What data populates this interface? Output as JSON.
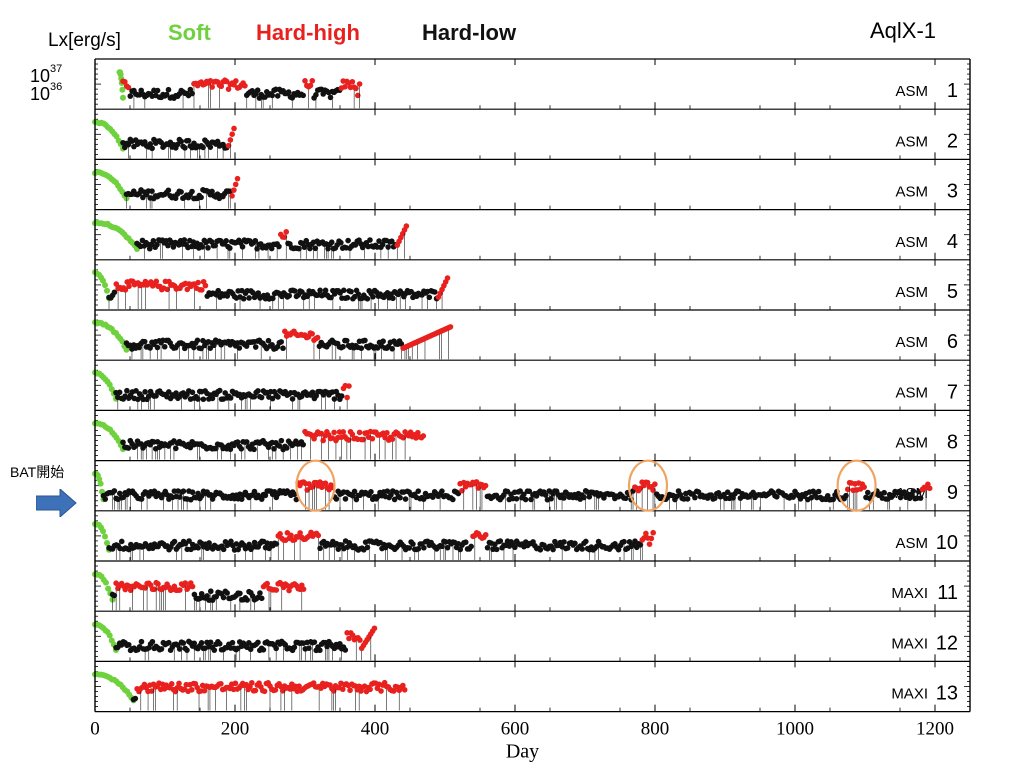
{
  "title": "AqlX-1",
  "ylabel": "Lx[erg/s]",
  "xlabel": "Day",
  "legend": [
    {
      "label": "Soft",
      "color": "#6fd13e"
    },
    {
      "label": "Hard-high",
      "color": "#e8211f"
    },
    {
      "label": "Hard-low",
      "color": "#111111"
    }
  ],
  "yticks": [
    {
      "base": "10",
      "exp": "37"
    },
    {
      "base": "10",
      "exp": "36"
    }
  ],
  "annotation": {
    "text": "BAT開始",
    "arrow_color": "#3d72b8",
    "panel": 9
  },
  "highlight": {
    "panel": "9",
    "x_days": [
      315,
      790,
      1088
    ],
    "color": "#f0a464"
  },
  "chart_data": {
    "type": "scatter",
    "xlim": [
      0,
      1250
    ],
    "xticks": [
      0,
      200,
      400,
      600,
      800,
      1000,
      1200
    ],
    "colors": {
      "soft": "#6fd13e",
      "hard_high": "#e8211f",
      "hard_low": "#111111"
    },
    "panels": [
      {
        "id": "1",
        "instrument": "ASM",
        "soft": [
          35,
          40
        ],
        "hard": [
          40,
          375
        ],
        "high_ranges": [
          [
            40,
            48
          ],
          [
            140,
            215
          ],
          [
            300,
            312
          ],
          [
            350,
            380
          ]
        ],
        "end": 380
      },
      {
        "id": "2",
        "instrument": "ASM",
        "soft": [
          0,
          40
        ],
        "hard": [
          40,
          190
        ],
        "high_ranges": [
          [
            190,
            200
          ]
        ],
        "end": 200
      },
      {
        "id": "3",
        "instrument": "ASM",
        "soft": [
          0,
          45
        ],
        "hard": [
          45,
          195
        ],
        "high_ranges": [
          [
            195,
            205
          ]
        ],
        "end": 205
      },
      {
        "id": "4",
        "instrument": "ASM",
        "soft": [
          0,
          60
        ],
        "hard": [
          60,
          430
        ],
        "high_ranges": [
          [
            265,
            275
          ],
          [
            430,
            445
          ]
        ],
        "end": 445
      },
      {
        "id": "5",
        "instrument": "ASM",
        "soft": [
          0,
          20
        ],
        "hard": [
          20,
          490
        ],
        "high_ranges": [
          [
            30,
            160
          ],
          [
            490,
            505
          ]
        ],
        "end": 505
      },
      {
        "id": "6",
        "instrument": "ASM",
        "soft": [
          0,
          45
        ],
        "hard": [
          45,
          440
        ],
        "high_ranges": [
          [
            270,
            320
          ],
          [
            445,
            510
          ]
        ],
        "end": 510
      },
      {
        "id": "7",
        "instrument": "ASM",
        "soft": [
          0,
          30
        ],
        "hard": [
          30,
          360
        ],
        "high_ranges": [
          [
            355,
            365
          ]
        ],
        "end": 365
      },
      {
        "id": "8",
        "instrument": "ASM",
        "soft": [
          0,
          40
        ],
        "hard": [
          40,
          470
        ],
        "high_ranges": [
          [
            300,
            430
          ],
          [
            430,
            470
          ]
        ],
        "end": 470
      },
      {
        "id": "9",
        "instrument": "ASM",
        "soft": [
          0,
          12
        ],
        "hard": [
          12,
          1190
        ],
        "high_ranges": [
          [
            290,
            340
          ],
          [
            520,
            560
          ],
          [
            770,
            800
          ],
          [
            1075,
            1100
          ],
          [
            1180,
            1195
          ]
        ],
        "end": 1195
      },
      {
        "id": "10",
        "instrument": "ASM",
        "soft": [
          0,
          20
        ],
        "hard": [
          20,
          790
        ],
        "high_ranges": [
          [
            260,
            320
          ],
          [
            540,
            560
          ],
          [
            780,
            800
          ]
        ],
        "end": 800
      },
      {
        "id": "11",
        "instrument": "MAXI",
        "soft": [
          0,
          25
        ],
        "hard": [
          25,
          300
        ],
        "high_ranges": [
          [
            30,
            140
          ],
          [
            240,
            300
          ]
        ],
        "end": 300
      },
      {
        "id": "12",
        "instrument": "MAXI",
        "soft": [
          0,
          30
        ],
        "hard": [
          30,
          380
        ],
        "high_ranges": [
          [
            360,
            400
          ]
        ],
        "end": 400
      },
      {
        "id": "13",
        "instrument": "MAXI",
        "soft": [
          0,
          55
        ],
        "hard": [
          55,
          445
        ],
        "high_ranges": [
          [
            60,
            445
          ]
        ],
        "end": 445
      }
    ]
  }
}
